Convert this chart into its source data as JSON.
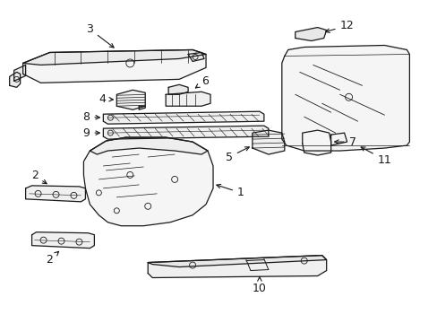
{
  "background_color": "#ffffff",
  "line_color": "#1a1a1a",
  "line_width": 0.9,
  "figsize": [
    4.89,
    3.6
  ],
  "dpi": 100,
  "xlim": [
    0,
    489
  ],
  "ylim": [
    0,
    360
  ]
}
